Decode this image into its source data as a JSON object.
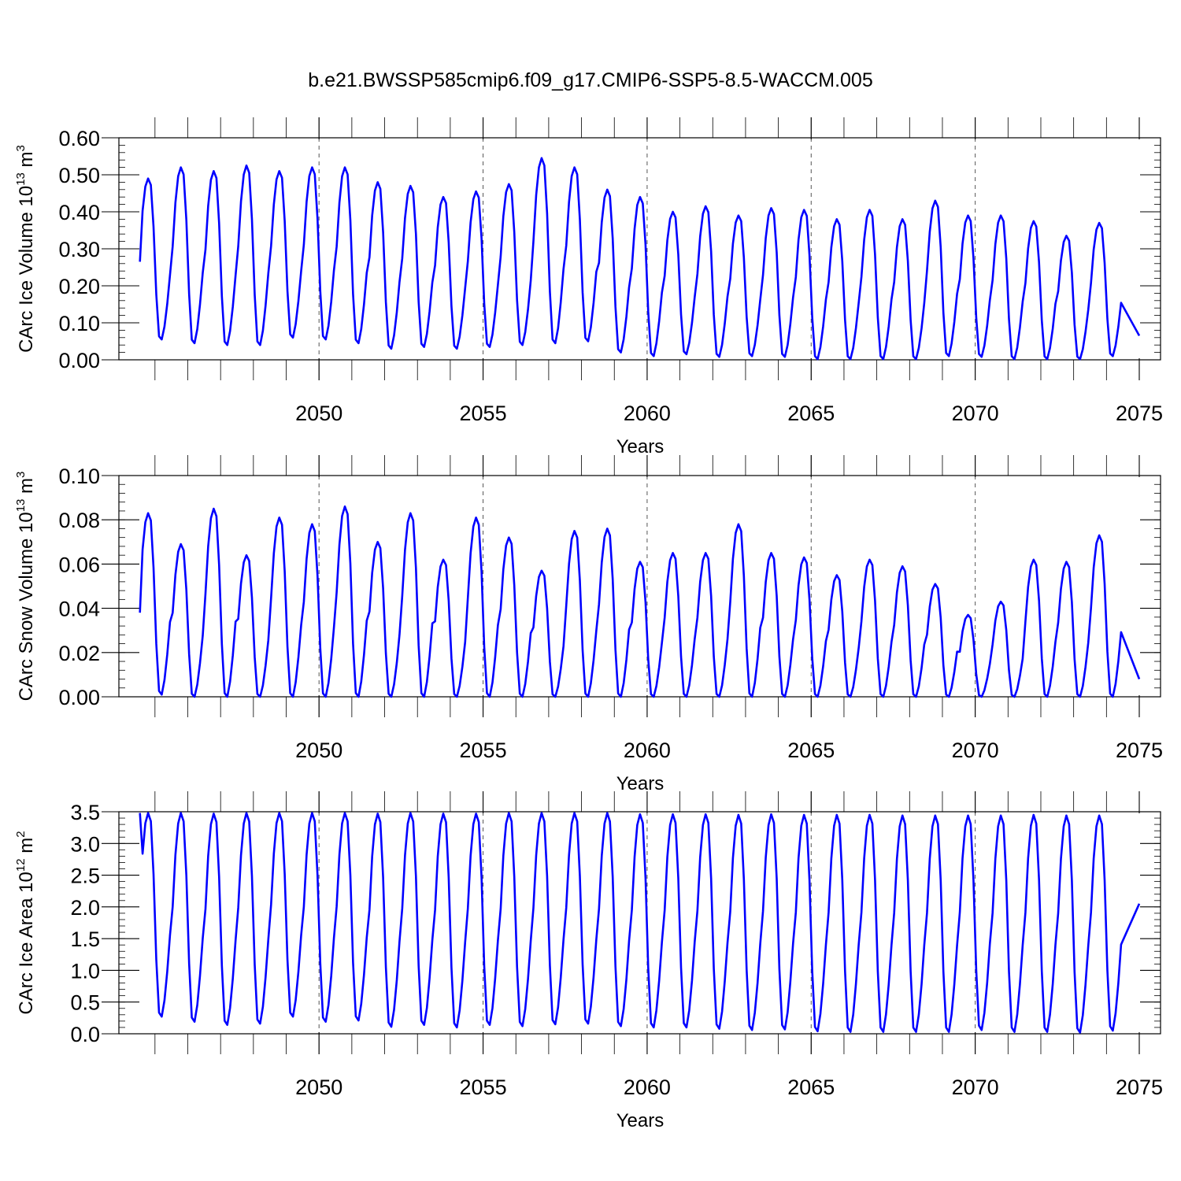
{
  "title": "b.e21.BWSSP585cmip6.f09_g17.CMIP6-SSP5-8.5-WACCM.005",
  "chart_data": [
    {
      "type": "line",
      "name": "ice-volume",
      "ylabel": "CArc Ice Volume",
      "ylabel_unit_base": "10",
      "ylabel_unit_exp": "13",
      "ylabel_unit": "m",
      "ylabel_unit_pow": "3",
      "xlabel": "Years",
      "xlim": [
        2044.5,
        2075.0
      ],
      "ylim": [
        0.0,
        0.6
      ],
      "yticks": [
        0.0,
        0.1,
        0.2,
        0.3,
        0.4,
        0.5,
        0.6
      ],
      "ytick_labels": [
        "0.00",
        "0.10",
        "0.20",
        "0.30",
        "0.40",
        "0.50",
        "0.60"
      ],
      "yminor_step": 0.02,
      "xticks": [
        2050,
        2055,
        2060,
        2065,
        2070,
        2075
      ],
      "xtick_labels": [
        "2050",
        "2055",
        "2060",
        "2065",
        "2070",
        "2075"
      ],
      "dashed_x": [
        2050,
        2055,
        2060,
        2065,
        2070
      ],
      "color": "#0000ff",
      "start": 2044.54,
      "step": 0.0833,
      "annual_max": [
        0.49,
        0.52,
        0.51,
        0.525,
        0.51,
        0.52,
        0.52,
        0.48,
        0.47,
        0.44,
        0.455,
        0.475,
        0.545,
        0.52,
        0.46,
        0.44,
        0.4,
        0.415,
        0.39,
        0.41,
        0.405,
        0.38,
        0.405,
        0.38,
        0.43,
        0.39,
        0.39,
        0.375,
        0.335,
        0.37
      ],
      "annual_min": [
        0.055,
        0.045,
        0.04,
        0.04,
        0.06,
        0.055,
        0.045,
        0.03,
        0.035,
        0.03,
        0.035,
        0.04,
        0.045,
        0.05,
        0.02,
        0.01,
        0.015,
        0.008,
        0.01,
        0.008,
        0.002,
        0.002,
        0.002,
        0.002,
        0.01,
        0.008,
        0.002,
        0.002,
        0.002,
        0.01
      ],
      "first_value": 0.265,
      "last_value": 0.065
    },
    {
      "type": "line",
      "name": "snow-volume",
      "ylabel": "CArc Snow Volume",
      "ylabel_unit_base": "10",
      "ylabel_unit_exp": "13",
      "ylabel_unit": "m",
      "ylabel_unit_pow": "3",
      "xlabel": "Years",
      "xlim": [
        2044.5,
        2075.0
      ],
      "ylim": [
        0.0,
        0.1
      ],
      "yticks": [
        0.0,
        0.02,
        0.04,
        0.06,
        0.08,
        0.1
      ],
      "ytick_labels": [
        "0.00",
        "0.02",
        "0.04",
        "0.06",
        "0.08",
        "0.10"
      ],
      "yminor_step": 0.004,
      "xticks": [
        2050,
        2055,
        2060,
        2065,
        2070,
        2075
      ],
      "xtick_labels": [
        "2050",
        "2055",
        "2060",
        "2065",
        "2070",
        "2075"
      ],
      "dashed_x": [
        2050,
        2055,
        2060,
        2065,
        2070
      ],
      "color": "#0000ff",
      "start": 2044.54,
      "step": 0.0833,
      "annual_max": [
        0.083,
        0.069,
        0.085,
        0.064,
        0.081,
        0.078,
        0.086,
        0.07,
        0.083,
        0.062,
        0.081,
        0.072,
        0.057,
        0.075,
        0.076,
        0.061,
        0.065,
        0.065,
        0.078,
        0.065,
        0.063,
        0.055,
        0.062,
        0.059,
        0.051,
        0.037,
        0.043,
        0.062,
        0.061,
        0.073
      ],
      "annual_min": [
        0.001,
        0.0,
        0.0,
        0.0,
        0.0,
        0.0,
        0.0,
        0.0,
        0.0,
        0.0,
        0.0,
        0.0,
        0.0,
        0.0,
        0.0,
        0.0,
        0.0,
        0.0,
        0.0,
        0.0,
        0.0,
        0.0,
        0.0,
        0.0,
        0.0,
        0.0,
        0.0,
        0.0,
        0.0,
        0.0
      ],
      "first_value": 0.038,
      "last_value": 0.008
    },
    {
      "type": "line",
      "name": "ice-area",
      "ylabel": "CArc Ice Area",
      "ylabel_unit_base": "10",
      "ylabel_unit_exp": "12",
      "ylabel_unit": "m",
      "ylabel_unit_pow": "2",
      "xlabel": "Years",
      "xlim": [
        2044.5,
        2075.0
      ],
      "ylim": [
        0.0,
        3.5
      ],
      "yticks": [
        0.0,
        0.5,
        1.0,
        1.5,
        2.0,
        2.5,
        3.0,
        3.5
      ],
      "ytick_labels": [
        "0.0",
        "0.5",
        "1.0",
        "1.5",
        "2.0",
        "2.5",
        "3.0",
        "3.5"
      ],
      "yminor_step": 0.1,
      "xticks": [
        2050,
        2055,
        2060,
        2065,
        2070,
        2075
      ],
      "xtick_labels": [
        "2050",
        "2055",
        "2060",
        "2065",
        "2070",
        "2075"
      ],
      "dashed_x": [
        2050,
        2055,
        2060,
        2065,
        2070
      ],
      "color": "#0000ff",
      "start": 2044.54,
      "step": 0.0833,
      "annual_max": [
        3.48,
        3.48,
        3.47,
        3.48,
        3.48,
        3.48,
        3.48,
        3.47,
        3.48,
        3.47,
        3.47,
        3.48,
        3.48,
        3.48,
        3.48,
        3.46,
        3.46,
        3.46,
        3.45,
        3.46,
        3.45,
        3.45,
        3.45,
        3.44,
        3.44,
        3.44,
        3.44,
        3.45,
        3.44,
        3.44
      ],
      "annual_min": [
        0.27,
        0.19,
        0.14,
        0.16,
        0.27,
        0.19,
        0.21,
        0.11,
        0.14,
        0.1,
        0.14,
        0.12,
        0.15,
        0.16,
        0.12,
        0.1,
        0.1,
        0.08,
        0.06,
        0.07,
        0.04,
        0.03,
        0.03,
        0.03,
        0.03,
        0.06,
        0.03,
        0.03,
        0.02,
        0.05
      ],
      "first_value": 3.48,
      "last_value": 2.05
    }
  ]
}
